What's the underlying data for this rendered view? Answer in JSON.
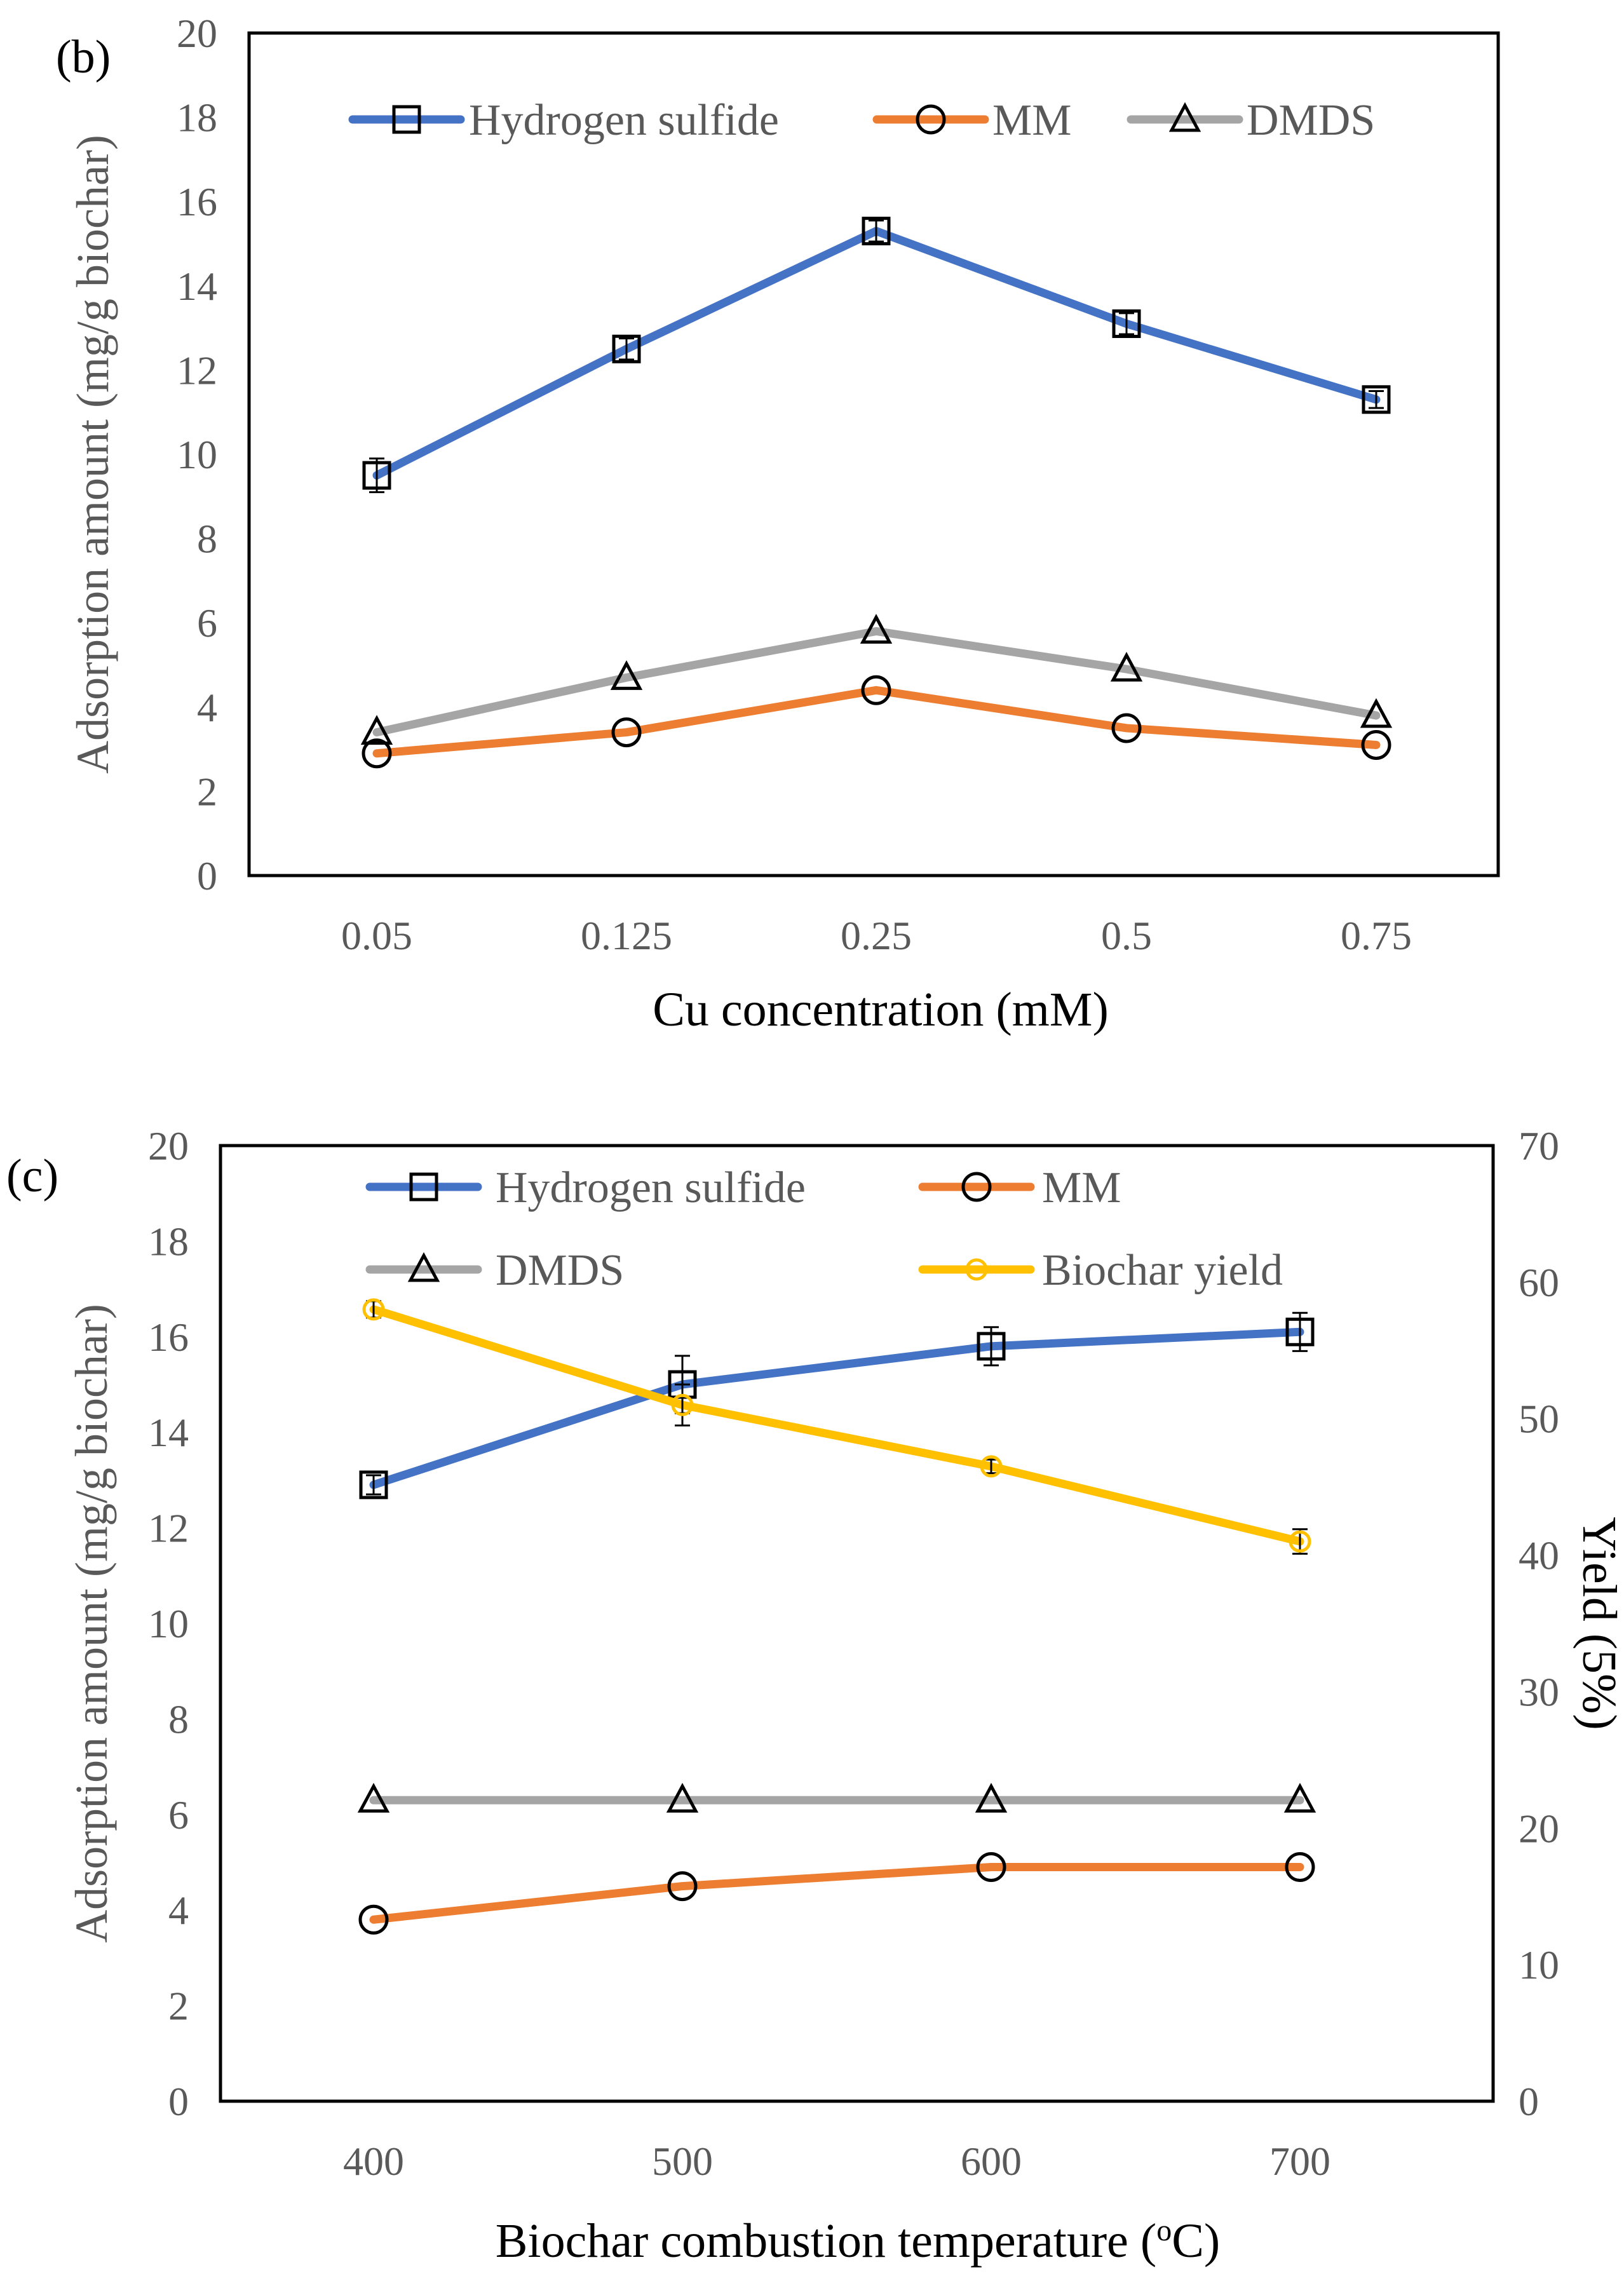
{
  "chart_data": [
    {
      "type": "line",
      "panel_label": "(b)",
      "xlabel": "Cu concentration (mM)",
      "ylabel": "Adsorption amount (mg/g biochar)",
      "categories": [
        "0.05",
        "0.125",
        "0.25",
        "0.5",
        "0.75"
      ],
      "ylim": [
        0,
        20
      ],
      "yticks": [
        "0",
        "2",
        "4",
        "6",
        "8",
        "10",
        "12",
        "14",
        "16",
        "18",
        "20"
      ],
      "legend_position": "top",
      "series": [
        {
          "name": "Hydrogen sulfide",
          "color": "#4472C4",
          "marker": "square",
          "values": [
            9.5,
            12.5,
            15.3,
            13.1,
            11.3
          ],
          "errors": [
            0.4,
            0.25,
            0.25,
            0.25,
            0.2
          ]
        },
        {
          "name": "MM",
          "color": "#ED7D31",
          "marker": "circle",
          "values": [
            2.9,
            3.4,
            4.4,
            3.5,
            3.1
          ],
          "errors": [
            0,
            0,
            0,
            0,
            0
          ]
        },
        {
          "name": "DMDS",
          "color": "#A5A5A5",
          "marker": "triangle",
          "values": [
            3.4,
            4.7,
            5.8,
            4.9,
            3.8
          ],
          "errors": [
            0,
            0,
            0,
            0,
            0
          ]
        }
      ]
    },
    {
      "type": "line",
      "panel_label": "(c)",
      "xlabel_main": "Biochar combustion temperature (",
      "xlabel_sup": "o",
      "xlabel_end": "C)",
      "ylabel": "Adsorption amount (mg/g biochar)",
      "y2label": "Yield (5%)",
      "categories": [
        "400",
        "500",
        "600",
        "700"
      ],
      "ylim": [
        0,
        20
      ],
      "y2lim": [
        0,
        70
      ],
      "yticks": [
        "0",
        "2",
        "4",
        "6",
        "8",
        "10",
        "12",
        "14",
        "16",
        "18",
        "20"
      ],
      "y2ticks": [
        "0",
        "10",
        "20",
        "30",
        "40",
        "50",
        "60",
        "70"
      ],
      "legend_position": "top",
      "series": [
        {
          "name": "Hydrogen sulfide",
          "axis": "left",
          "color": "#4472C4",
          "marker": "square",
          "values": [
            12.9,
            15.0,
            15.8,
            16.1
          ],
          "errors": [
            0.2,
            0.6,
            0.4,
            0.4
          ]
        },
        {
          "name": "MM",
          "axis": "left",
          "color": "#ED7D31",
          "marker": "circle",
          "values": [
            3.8,
            4.5,
            4.9,
            4.9
          ],
          "errors": [
            0,
            0,
            0,
            0
          ]
        },
        {
          "name": "DMDS",
          "axis": "left",
          "color": "#A5A5A5",
          "marker": "triangle",
          "values": [
            6.3,
            6.3,
            6.3,
            6.3
          ],
          "errors": [
            0,
            0,
            0,
            0
          ]
        },
        {
          "name": "Biochar yield",
          "axis": "right",
          "color": "#FFC000",
          "marker": "circle-small",
          "values": [
            58,
            51,
            46.5,
            41
          ],
          "errors": [
            0.6,
            1.5,
            0.5,
            0.9
          ]
        }
      ]
    }
  ]
}
